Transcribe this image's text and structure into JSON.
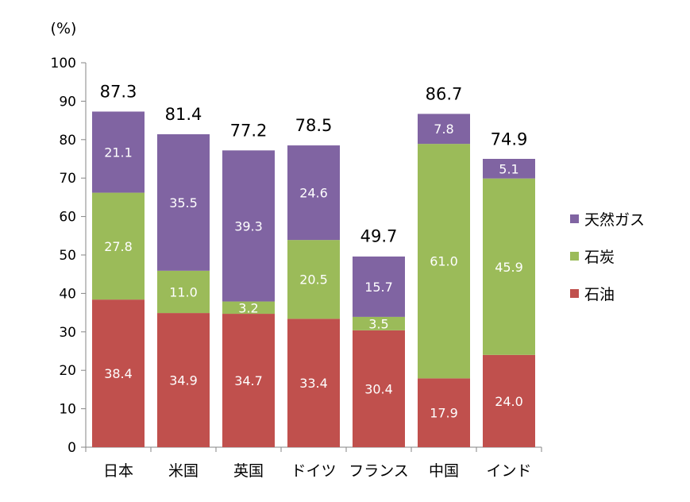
{
  "chart_data": {
    "type": "bar",
    "stacked": true,
    "unit_label": "(%)",
    "categories": [
      "日本",
      "米国",
      "英国",
      "ドイツ",
      "フランス",
      "中国",
      "インド"
    ],
    "series": [
      {
        "name": "石油",
        "color": "#C0504D",
        "values": [
          38.4,
          34.9,
          34.7,
          33.4,
          30.4,
          17.9,
          24.0
        ]
      },
      {
        "name": "石炭",
        "color": "#9BBB59",
        "values": [
          27.8,
          11.0,
          3.2,
          20.5,
          3.5,
          61.0,
          45.9
        ]
      },
      {
        "name": "天然ガス",
        "color": "#8064A2",
        "values": [
          21.1,
          35.5,
          39.3,
          24.6,
          15.7,
          7.8,
          5.1
        ]
      }
    ],
    "totals": [
      87.3,
      81.4,
      77.2,
      78.5,
      49.7,
      86.7,
      74.9
    ],
    "ylim": [
      0,
      100
    ],
    "yticks": [
      0,
      10,
      20,
      30,
      40,
      50,
      60,
      70,
      80,
      90,
      100
    ],
    "legend_order": [
      "天然ガス",
      "石炭",
      "石油"
    ],
    "legend_position": "right"
  }
}
